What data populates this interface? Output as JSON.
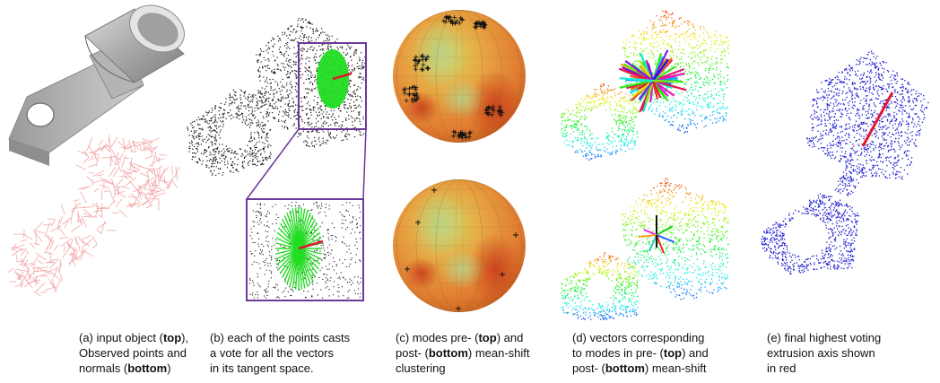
{
  "figure": {
    "captions": [
      {
        "id": "a",
        "lines": [
          [
            {
              "t": "(a)  input object ("
            },
            {
              "t": "top",
              "b": true
            },
            {
              "t": "),"
            }
          ],
          [
            {
              "t": "Observed points and"
            }
          ],
          [
            {
              "t": "normals ("
            },
            {
              "t": "bottom",
              "b": true
            },
            {
              "t": ")"
            }
          ]
        ]
      },
      {
        "id": "b",
        "lines": [
          [
            {
              "t": "(b)  each of the points casts"
            }
          ],
          [
            {
              "t": "a vote for all the vectors"
            }
          ],
          [
            {
              "t": "in its tangent space."
            }
          ]
        ]
      },
      {
        "id": "c",
        "lines": [
          [
            {
              "t": "(c) modes pre- ("
            },
            {
              "t": "top",
              "b": true
            },
            {
              "t": ") and"
            }
          ],
          [
            {
              "t": "post- ("
            },
            {
              "t": "bottom",
              "b": true
            },
            {
              "t": ") mean-shift"
            }
          ],
          [
            {
              "t": "clustering"
            }
          ]
        ]
      },
      {
        "id": "d",
        "lines": [
          [
            {
              "t": "(d) vectors corresponding"
            }
          ],
          [
            {
              "t": "to modes in pre- ("
            },
            {
              "t": "top",
              "b": true
            },
            {
              "t": ") and"
            }
          ],
          [
            {
              "t": "post- ("
            },
            {
              "t": "bottom",
              "b": true
            },
            {
              "t": ") mean-shift"
            }
          ]
        ]
      },
      {
        "id": "e",
        "lines": [
          [
            {
              "t": "(e) final highest voting"
            }
          ],
          [
            {
              "t": "extrusion axis shown"
            }
          ],
          [
            {
              "t": "in red"
            }
          ]
        ]
      }
    ],
    "colors": {
      "mesh": "#b8b8b8",
      "normals": "#f2a0a0",
      "points": "#111111",
      "vote_vectors": "#22dd22",
      "axis": "#e01830",
      "inset_frame": "#6a3a9a",
      "sphere_warm": "#e07030",
      "sphere_cool": "#c8d060",
      "final_points": "#1a1ad0"
    }
  }
}
